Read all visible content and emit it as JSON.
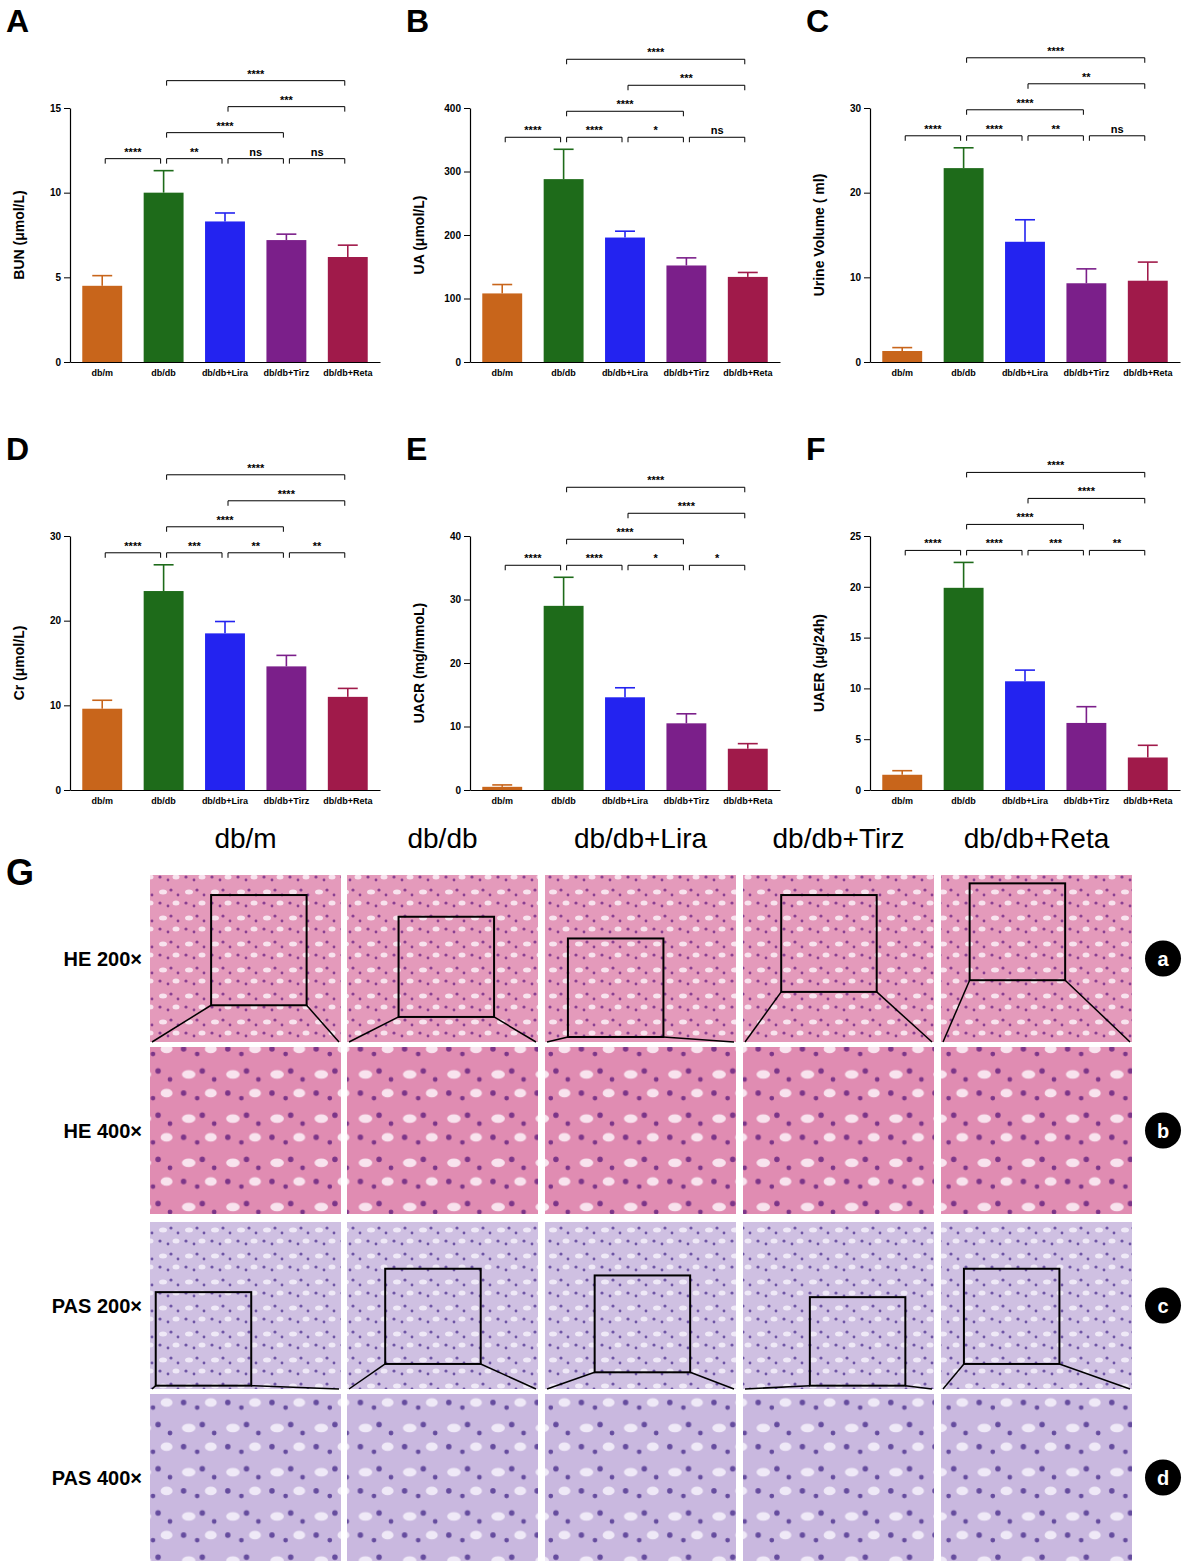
{
  "chart_data": [
    {
      "type": "bar",
      "panel": "A",
      "y_label": "BUN (μmol/L)",
      "categories": [
        "db/m",
        "db/db",
        "db/db+Lira",
        "db/db+Tirz",
        "db/db+Reta"
      ],
      "values": [
        4.5,
        10.0,
        8.3,
        7.2,
        6.2
      ],
      "errors": [
        0.6,
        1.3,
        0.5,
        0.35,
        0.7
      ],
      "colors": [
        "#c8651b",
        "#1e6b1a",
        "#2323f0",
        "#7b1f8a",
        "#a01a4a"
      ],
      "ylim": [
        0,
        15
      ],
      "yticks": [
        0,
        5,
        10,
        15
      ],
      "grid": false,
      "comparisons": [
        {
          "groups": [
            "db/m",
            "db/db"
          ],
          "label": "****"
        },
        {
          "groups": [
            "db/db",
            "db/db+Lira"
          ],
          "label": "**"
        },
        {
          "groups": [
            "db/db+Lira",
            "db/db+Tirz"
          ],
          "label": "ns"
        },
        {
          "groups": [
            "db/db+Tirz",
            "db/db+Reta"
          ],
          "label": "ns"
        },
        {
          "groups": [
            "db/db",
            "db/db+Tirz"
          ],
          "label": "****"
        },
        {
          "groups": [
            "db/db+Lira",
            "db/db+Reta"
          ],
          "label": "***"
        },
        {
          "groups": [
            "db/db",
            "db/db+Reta"
          ],
          "label": "****"
        }
      ]
    },
    {
      "type": "bar",
      "panel": "B",
      "y_label": "UA (μmol/L)",
      "categories": [
        "db/m",
        "db/db",
        "db/db+Lira",
        "db/db+Tirz",
        "db/db+Reta"
      ],
      "values": [
        108,
        288,
        196,
        152,
        134
      ],
      "errors": [
        14,
        47,
        10,
        12,
        7
      ],
      "colors": [
        "#c8651b",
        "#1e6b1a",
        "#2323f0",
        "#7b1f8a",
        "#a01a4a"
      ],
      "ylim": [
        0,
        400
      ],
      "yticks": [
        0,
        100,
        200,
        300,
        400
      ],
      "grid": false,
      "comparisons": [
        {
          "groups": [
            "db/m",
            "db/db"
          ],
          "label": "****"
        },
        {
          "groups": [
            "db/db",
            "db/db+Lira"
          ],
          "label": "****"
        },
        {
          "groups": [
            "db/db+Lira",
            "db/db+Tirz"
          ],
          "label": "*"
        },
        {
          "groups": [
            "db/db+Tirz",
            "db/db+Reta"
          ],
          "label": "ns"
        },
        {
          "groups": [
            "db/db",
            "db/db+Tirz"
          ],
          "label": "****"
        },
        {
          "groups": [
            "db/db+Lira",
            "db/db+Reta"
          ],
          "label": "***"
        },
        {
          "groups": [
            "db/db",
            "db/db+Reta"
          ],
          "label": "****"
        }
      ]
    },
    {
      "type": "bar",
      "panel": "C",
      "y_label": "Urine Volume ( ml)",
      "categories": [
        "db/m",
        "db/db",
        "db/db+Lira",
        "db/db+Tirz",
        "db/db+Reta"
      ],
      "values": [
        1.3,
        22.9,
        14.2,
        9.3,
        9.6
      ],
      "errors": [
        0.4,
        2.4,
        2.6,
        1.7,
        2.2
      ],
      "colors": [
        "#c8651b",
        "#1e6b1a",
        "#2323f0",
        "#7b1f8a",
        "#a01a4a"
      ],
      "ylim": [
        0,
        30
      ],
      "yticks": [
        0,
        10,
        20,
        30
      ],
      "grid": false,
      "comparisons": [
        {
          "groups": [
            "db/m",
            "db/db"
          ],
          "label": "****"
        },
        {
          "groups": [
            "db/db",
            "db/db+Lira"
          ],
          "label": "****"
        },
        {
          "groups": [
            "db/db+Lira",
            "db/db+Tirz"
          ],
          "label": "**"
        },
        {
          "groups": [
            "db/db+Tirz",
            "db/db+Reta"
          ],
          "label": "ns"
        },
        {
          "groups": [
            "db/db",
            "db/db+Tirz"
          ],
          "label": "****"
        },
        {
          "groups": [
            "db/db+Lira",
            "db/db+Reta"
          ],
          "label": "**"
        },
        {
          "groups": [
            "db/db",
            "db/db+Reta"
          ],
          "label": "****"
        }
      ]
    },
    {
      "type": "bar",
      "panel": "D",
      "y_label": "Cr (μmol/L)",
      "categories": [
        "db/m",
        "db/db",
        "db/db+Lira",
        "db/db+Tirz",
        "db/db+Reta"
      ],
      "values": [
        9.6,
        23.5,
        18.5,
        14.6,
        11.0
      ],
      "errors": [
        1.0,
        3.1,
        1.4,
        1.3,
        1.0
      ],
      "colors": [
        "#c8651b",
        "#1e6b1a",
        "#2323f0",
        "#7b1f8a",
        "#a01a4a"
      ],
      "ylim": [
        0,
        30
      ],
      "yticks": [
        0,
        10,
        20,
        30
      ],
      "grid": false,
      "comparisons": [
        {
          "groups": [
            "db/m",
            "db/db"
          ],
          "label": "****"
        },
        {
          "groups": [
            "db/db",
            "db/db+Lira"
          ],
          "label": "***"
        },
        {
          "groups": [
            "db/db+Lira",
            "db/db+Tirz"
          ],
          "label": "**"
        },
        {
          "groups": [
            "db/db+Tirz",
            "db/db+Reta"
          ],
          "label": "**"
        },
        {
          "groups": [
            "db/db",
            "db/db+Tirz"
          ],
          "label": "****"
        },
        {
          "groups": [
            "db/db+Lira",
            "db/db+Reta"
          ],
          "label": "****"
        },
        {
          "groups": [
            "db/db",
            "db/db+Reta"
          ],
          "label": "****"
        }
      ]
    },
    {
      "type": "bar",
      "panel": "E",
      "y_label": "UACR (mg/mmoL)",
      "categories": [
        "db/m",
        "db/db",
        "db/db+Lira",
        "db/db+Tirz",
        "db/db+Reta"
      ],
      "values": [
        0.5,
        29.0,
        14.6,
        10.5,
        6.5
      ],
      "errors": [
        0.3,
        4.5,
        1.5,
        1.5,
        0.8
      ],
      "colors": [
        "#c8651b",
        "#1e6b1a",
        "#2323f0",
        "#7b1f8a",
        "#a01a4a"
      ],
      "ylim": [
        0,
        40
      ],
      "yticks": [
        0,
        10,
        20,
        30,
        40
      ],
      "grid": false,
      "comparisons": [
        {
          "groups": [
            "db/m",
            "db/db"
          ],
          "label": "****"
        },
        {
          "groups": [
            "db/db",
            "db/db+Lira"
          ],
          "label": "****"
        },
        {
          "groups": [
            "db/db+Lira",
            "db/db+Tirz"
          ],
          "label": "*"
        },
        {
          "groups": [
            "db/db+Tirz",
            "db/db+Reta"
          ],
          "label": "*"
        },
        {
          "groups": [
            "db/db",
            "db/db+Tirz"
          ],
          "label": "****"
        },
        {
          "groups": [
            "db/db+Lira",
            "db/db+Reta"
          ],
          "label": "****"
        },
        {
          "groups": [
            "db/db",
            "db/db+Reta"
          ],
          "label": "****"
        }
      ]
    },
    {
      "type": "bar",
      "panel": "F",
      "y_label": "UAER (μg/24h)",
      "categories": [
        "db/m",
        "db/db",
        "db/db+Lira",
        "db/db+Tirz",
        "db/db+Reta"
      ],
      "values": [
        1.5,
        19.9,
        10.7,
        6.6,
        3.2
      ],
      "errors": [
        0.4,
        2.5,
        1.1,
        1.6,
        1.2
      ],
      "colors": [
        "#c8651b",
        "#1e6b1a",
        "#2323f0",
        "#7b1f8a",
        "#a01a4a"
      ],
      "ylim": [
        0,
        25
      ],
      "yticks": [
        0,
        5,
        10,
        15,
        20,
        25
      ],
      "grid": false,
      "comparisons": [
        {
          "groups": [
            "db/m",
            "db/db"
          ],
          "label": "****"
        },
        {
          "groups": [
            "db/db",
            "db/db+Lira"
          ],
          "label": "****"
        },
        {
          "groups": [
            "db/db+Lira",
            "db/db+Tirz"
          ],
          "label": "***"
        },
        {
          "groups": [
            "db/db+Tirz",
            "db/db+Reta"
          ],
          "label": "**"
        },
        {
          "groups": [
            "db/db",
            "db/db+Tirz"
          ],
          "label": "****"
        },
        {
          "groups": [
            "db/db+Lira",
            "db/db+Reta"
          ],
          "label": "****"
        },
        {
          "groups": [
            "db/db",
            "db/db+Reta"
          ],
          "label": "****"
        }
      ]
    }
  ],
  "panel_g": {
    "panel": "G",
    "columns": [
      "db/m",
      "db/db",
      "db/db+Lira",
      "db/db+Tirz",
      "db/db+Reta"
    ],
    "rows": [
      {
        "label": "HE 200×",
        "letter": "a"
      },
      {
        "label": "HE 400×",
        "letter": "b"
      },
      {
        "label": "PAS 200×",
        "letter": "c"
      },
      {
        "label": "PAS 400×",
        "letter": "d"
      }
    ]
  }
}
